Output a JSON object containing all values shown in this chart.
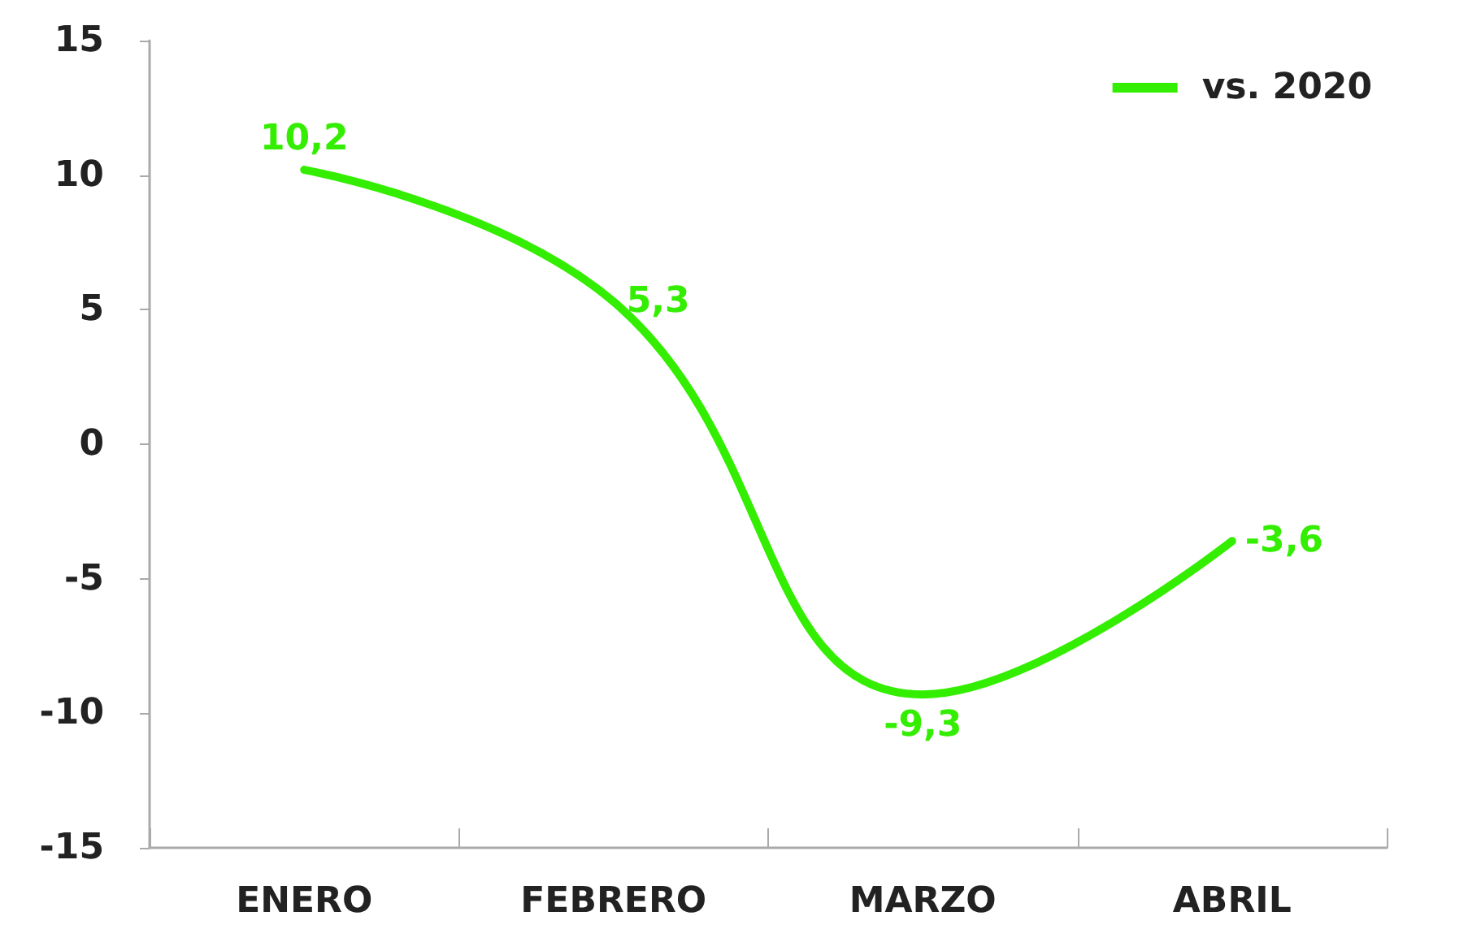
{
  "chart_data": {
    "type": "line",
    "categories": [
      "ENERO",
      "FEBRERO",
      "MARZO",
      "ABRIL"
    ],
    "series": [
      {
        "name": "vs. 2020",
        "color": "#33ee00",
        "values": [
          10.2,
          5.3,
          -9.3,
          -3.6
        ],
        "value_labels": [
          "10,2",
          "5,3",
          "-9,3",
          "-3,6"
        ]
      }
    ],
    "ylim": [
      -15,
      15
    ],
    "yticks": [
      -15,
      -10,
      -5,
      0,
      5,
      10,
      15
    ],
    "grid": false,
    "legend": "top right",
    "marker": "none",
    "line_style": "solid"
  }
}
